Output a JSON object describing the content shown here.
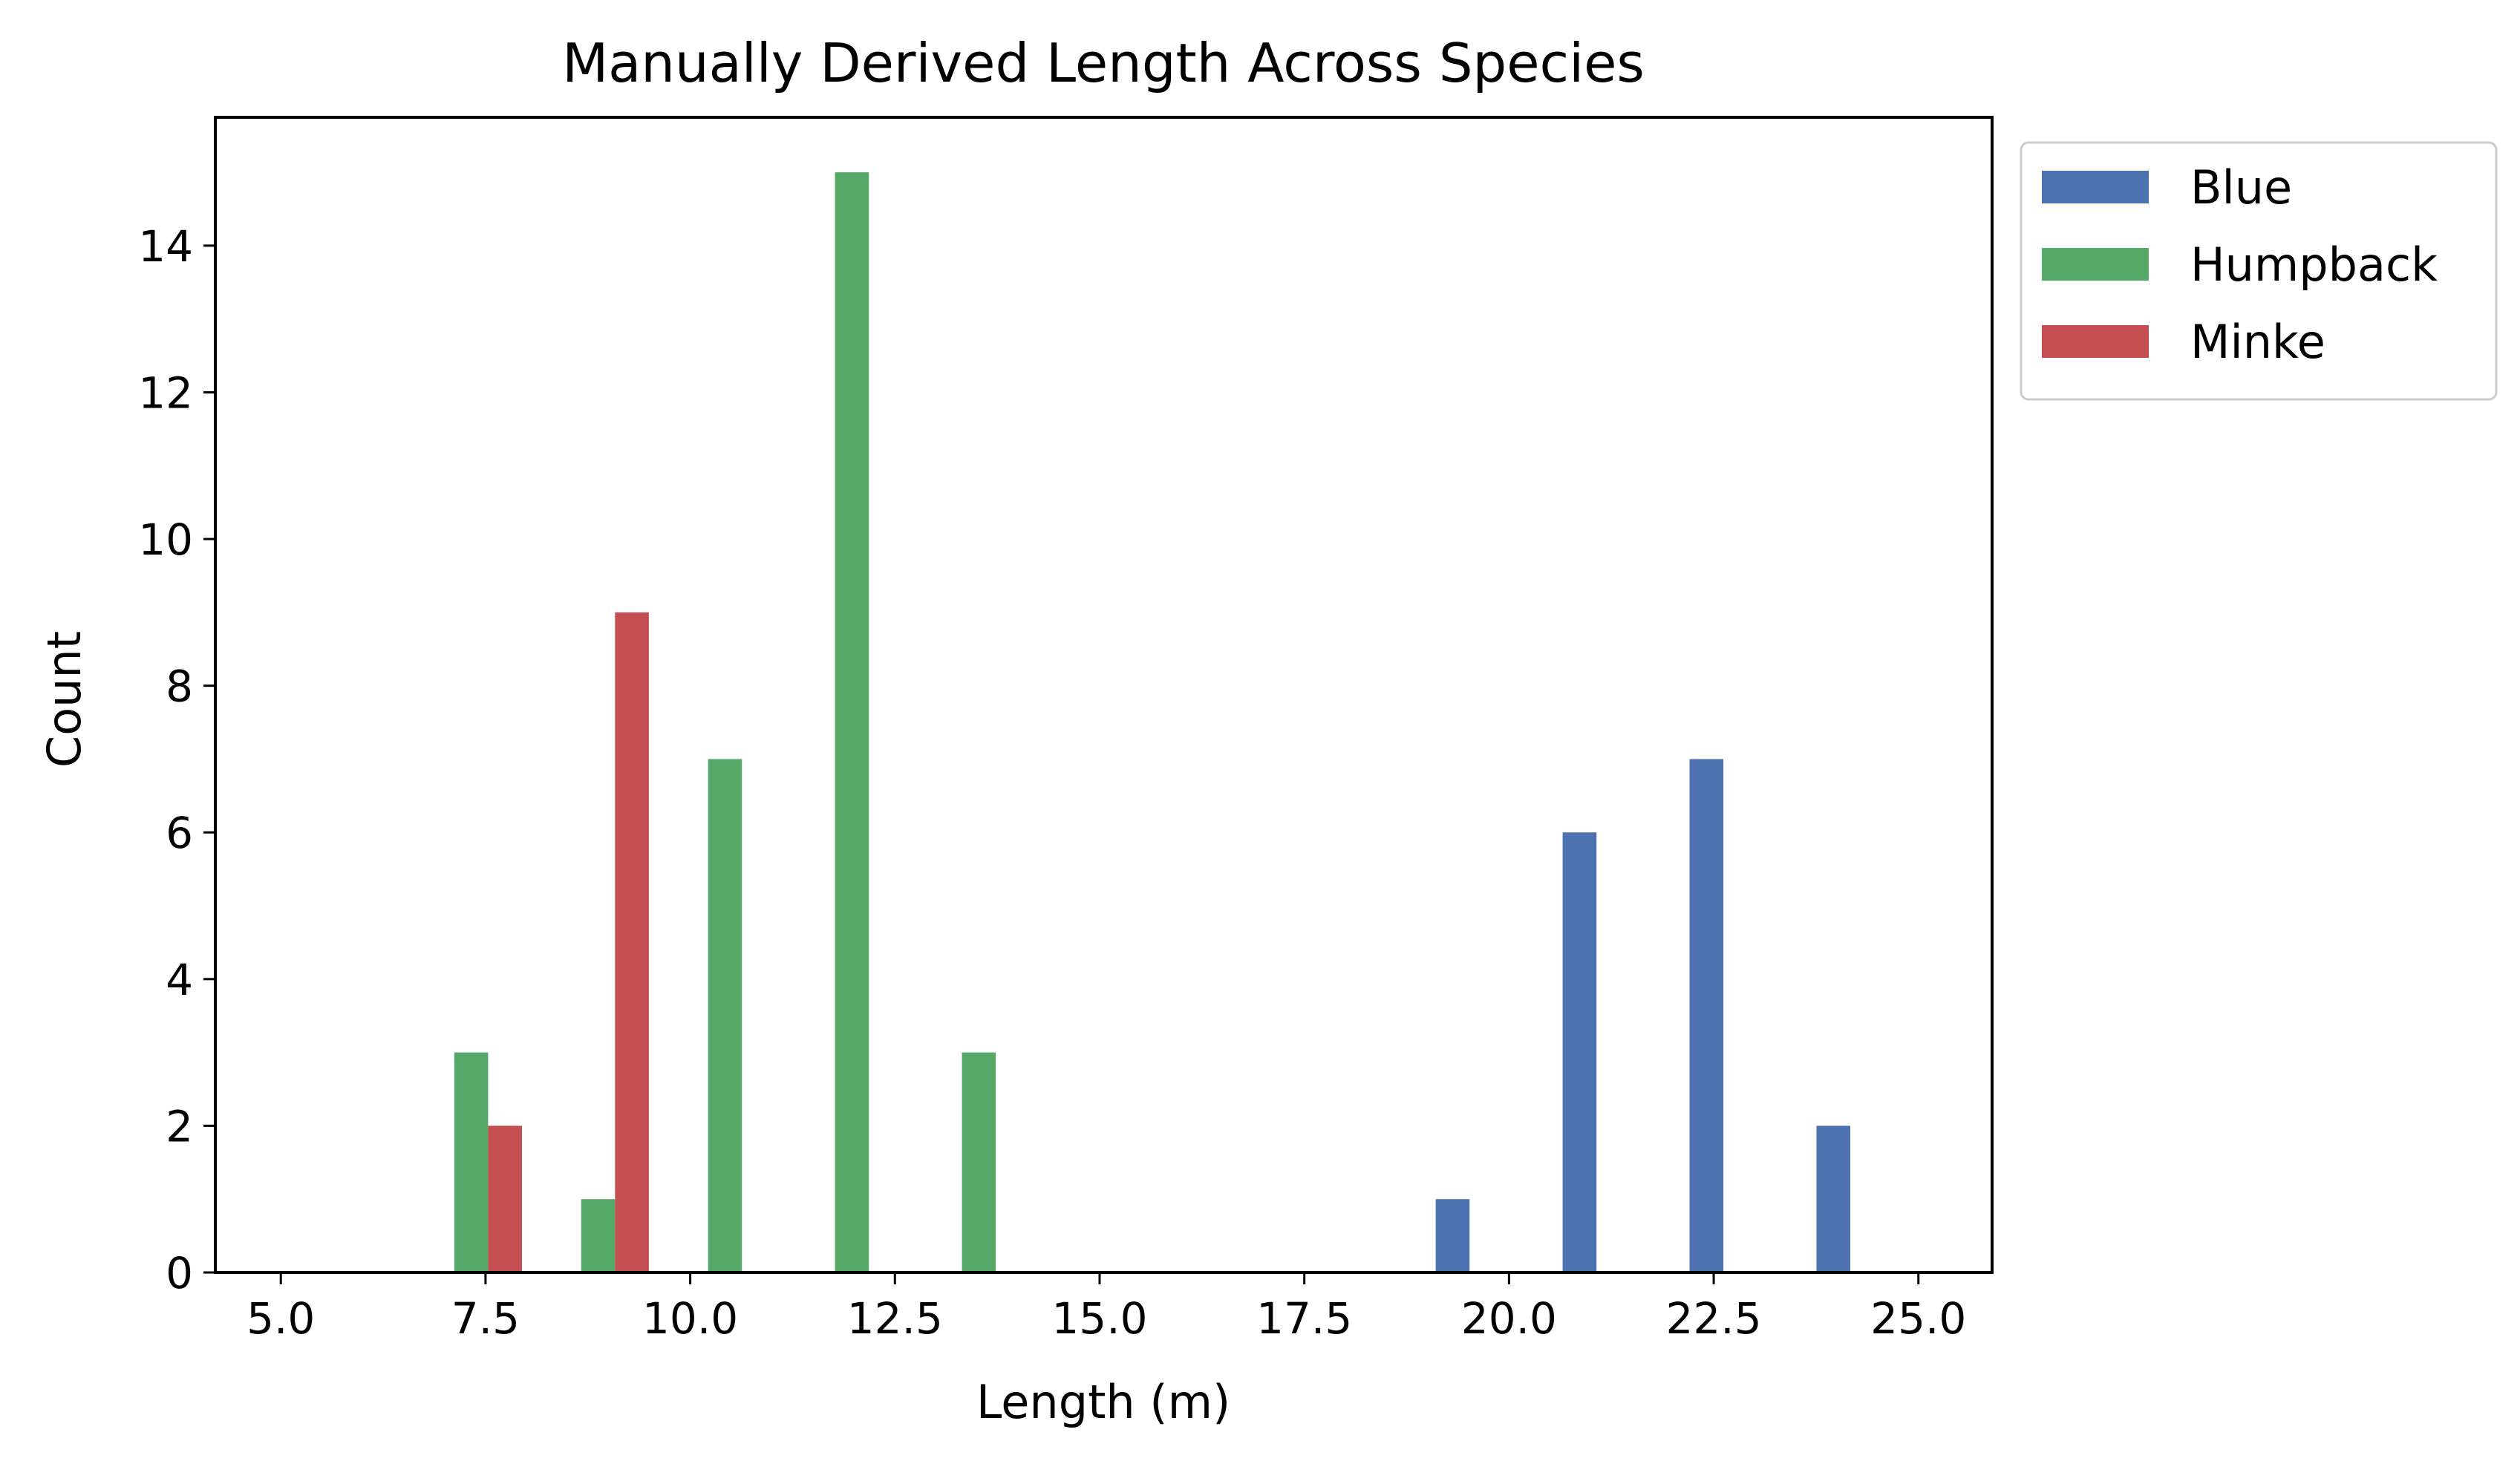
{
  "chart_data": {
    "type": "bar",
    "title": "Manually Derived Length Across Species",
    "xlabel": "Length (m)",
    "ylabel": "Count",
    "xlim": [
      4.2,
      25.9
    ],
    "ylim": [
      0,
      15.75
    ],
    "xticks": [
      "5.0",
      "7.5",
      "10.0",
      "12.5",
      "15.0",
      "17.5",
      "20.0",
      "22.5",
      "25.0"
    ],
    "yticks": [
      "0",
      "2",
      "4",
      "6",
      "8",
      "10",
      "12",
      "14"
    ],
    "bin_edges": [
      5.0,
      6.55,
      8.1,
      9.65,
      11.2,
      12.75,
      14.3,
      15.85,
      17.4,
      18.95,
      20.5,
      22.05,
      23.6,
      25.15
    ],
    "series": [
      {
        "name": "Blue",
        "color": "#4c72b0",
        "values": [
          0,
          0,
          0,
          0,
          0,
          0,
          0,
          0,
          0,
          1,
          6,
          7,
          2
        ]
      },
      {
        "name": "Humpback",
        "color": "#55a868",
        "values": [
          0,
          3,
          1,
          7,
          15,
          3,
          0,
          0,
          0,
          0,
          0,
          0,
          0
        ]
      },
      {
        "name": "Minke",
        "color": "#c44e52",
        "values": [
          0,
          2,
          9,
          0,
          0,
          0,
          0,
          0,
          0,
          0,
          0,
          0,
          0
        ]
      }
    ],
    "grid": false,
    "legend_position": "outside-top-right"
  }
}
